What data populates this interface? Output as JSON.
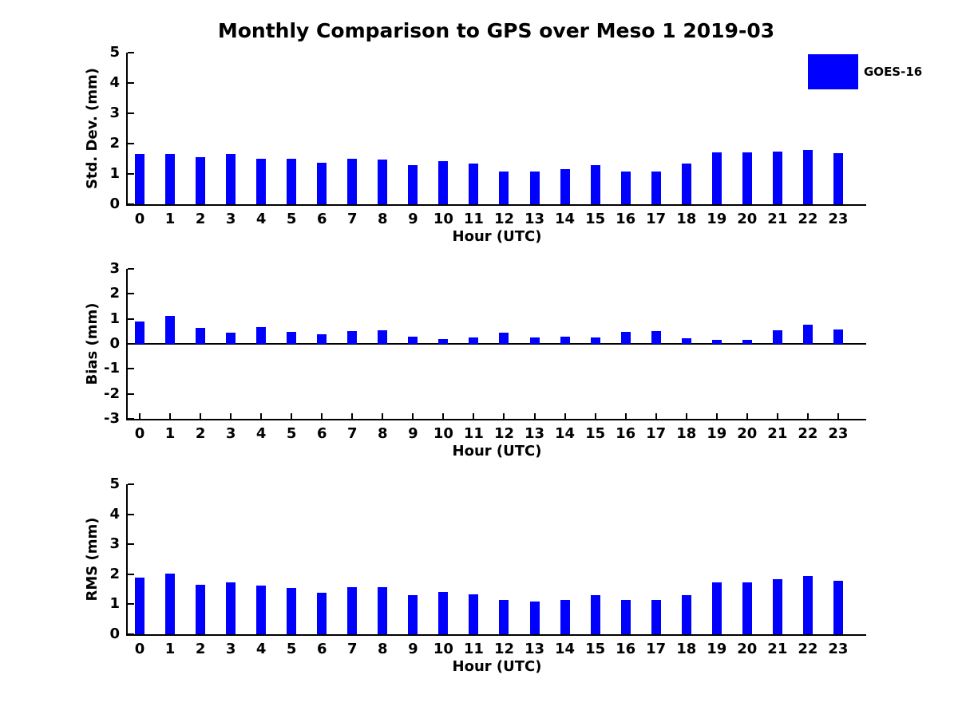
{
  "title": "Monthly Comparison to GPS over Meso 1 2019-03",
  "legend": {
    "label": "GOES-16",
    "swatch_color": "#0000ff",
    "position": "top-right"
  },
  "bar_color": "#0000ff",
  "chart_data": [
    {
      "type": "bar",
      "name": "std-dev",
      "ylabel": "Std. Dev. (mm)",
      "xlabel": "Hour (UTC)",
      "ylim": [
        0,
        5
      ],
      "yticks": [
        0,
        1,
        2,
        3,
        4,
        5
      ],
      "grid": false,
      "categories": [
        0,
        1,
        2,
        3,
        4,
        5,
        6,
        7,
        8,
        9,
        10,
        11,
        12,
        13,
        14,
        15,
        16,
        17,
        18,
        19,
        20,
        21,
        22,
        23
      ],
      "values": [
        1.67,
        1.67,
        1.54,
        1.67,
        1.51,
        1.49,
        1.37,
        1.51,
        1.48,
        1.28,
        1.41,
        1.33,
        1.08,
        1.08,
        1.15,
        1.28,
        1.08,
        1.08,
        1.34,
        1.71,
        1.71,
        1.74,
        1.8,
        1.69
      ]
    },
    {
      "type": "bar",
      "name": "bias",
      "ylabel": "Bias (mm)",
      "xlabel": "Hour (UTC)",
      "ylim": [
        -3,
        3
      ],
      "yticks": [
        -3,
        -2,
        -1,
        0,
        1,
        2,
        3
      ],
      "grid": false,
      "categories": [
        0,
        1,
        2,
        3,
        4,
        5,
        6,
        7,
        8,
        9,
        10,
        11,
        12,
        13,
        14,
        15,
        16,
        17,
        18,
        19,
        20,
        21,
        22,
        23
      ],
      "values": [
        0.9,
        1.12,
        0.63,
        0.45,
        0.67,
        0.47,
        0.38,
        0.5,
        0.55,
        0.3,
        0.18,
        0.24,
        0.44,
        0.26,
        0.29,
        0.27,
        0.48,
        0.5,
        0.22,
        0.16,
        0.17,
        0.55,
        0.78,
        0.57
      ]
    },
    {
      "type": "bar",
      "name": "rms",
      "ylabel": "RMS (mm)",
      "xlabel": "Hour (UTC)",
      "ylim": [
        0,
        5
      ],
      "yticks": [
        0,
        1,
        2,
        3,
        4,
        5
      ],
      "grid": false,
      "categories": [
        0,
        1,
        2,
        3,
        4,
        5,
        6,
        7,
        8,
        9,
        10,
        11,
        12,
        13,
        14,
        15,
        16,
        17,
        18,
        19,
        20,
        21,
        22,
        23
      ],
      "values": [
        1.89,
        2.02,
        1.65,
        1.73,
        1.62,
        1.55,
        1.39,
        1.57,
        1.57,
        1.31,
        1.41,
        1.34,
        1.15,
        1.08,
        1.15,
        1.31,
        1.15,
        1.15,
        1.31,
        1.73,
        1.73,
        1.83,
        1.94,
        1.78
      ]
    }
  ]
}
